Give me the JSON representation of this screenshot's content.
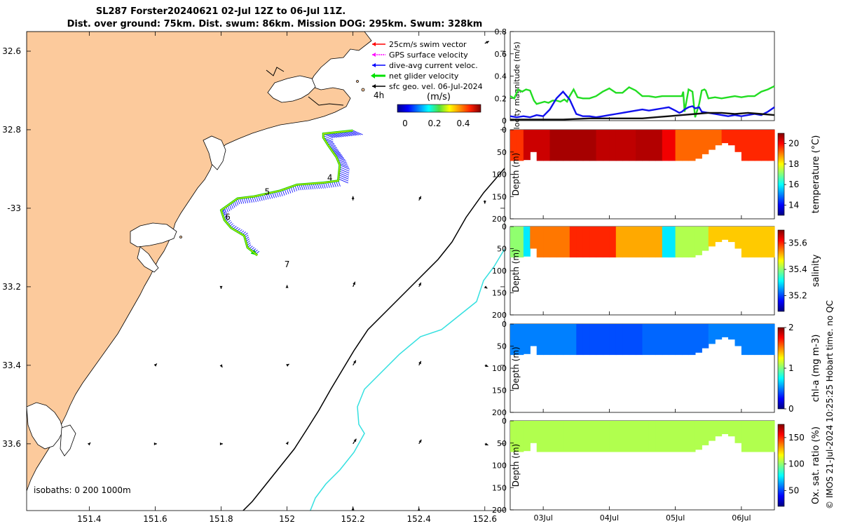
{
  "title": {
    "line1": "SL287 Forster20240621 02-Jul 12Z to 06-Jul 11Z.",
    "line2": "Dist. over ground: 75km. Dist. swum: 86km. Mission DOG: 295km. Swum: 328km"
  },
  "map": {
    "lon_ticks": [
      151.4,
      151.6,
      151.8,
      152,
      152.2,
      152.4,
      152.6
    ],
    "lon_tick_labels": [
      "151.4",
      "151.6",
      "151.8",
      "152",
      "152.2",
      "152.4",
      "152.6"
    ],
    "lat_ticks": [
      -32.6,
      -32.8,
      -33,
      -33.2,
      -33.4,
      -33.6
    ],
    "lat_tick_labels": [
      "32.6",
      "32.8",
      "-33",
      "33.2",
      "33.4",
      "33.6"
    ],
    "xlim": [
      151.21,
      152.66
    ],
    "ylim": [
      -33.77,
      -32.55
    ],
    "legend": [
      {
        "label": "25cm/s swim vector",
        "color": "#ff0000"
      },
      {
        "label": "GPS surface velocity",
        "color": "#ff00ff"
      },
      {
        "label": "dive-avg current veloc.",
        "color": "#0000ff"
      },
      {
        "label": "net glider velocity",
        "color": "#00e000"
      },
      {
        "label": "sfc geo. vel. 06-Jul-2024",
        "color": "#000000"
      }
    ],
    "colorbar_title": "(m/s)",
    "colorbar_ticks": [
      "0",
      "0.2",
      "0.4"
    ],
    "marker_4h": "4h",
    "day_labels": [
      {
        "text": "4",
        "lon": 152.13,
        "lat": -32.93
      },
      {
        "text": "5",
        "lon": 151.94,
        "lat": -32.965
      },
      {
        "text": "6",
        "lon": 151.82,
        "lat": -33.03
      },
      {
        "text": "7",
        "lon": 152.0,
        "lat": -33.15
      }
    ],
    "isobaths_label": "isobaths: 0   200  1000m",
    "glider_track": [
      [
        152.2,
        -32.802
      ],
      [
        152.11,
        -32.81
      ],
      [
        152.11,
        -32.82
      ],
      [
        152.125,
        -32.84
      ],
      [
        152.15,
        -32.87
      ],
      [
        152.16,
        -32.89
      ],
      [
        152.155,
        -32.93
      ],
      [
        152.11,
        -32.935
      ],
      [
        152.03,
        -32.94
      ],
      [
        151.98,
        -32.955
      ],
      [
        151.9,
        -32.97
      ],
      [
        151.85,
        -32.975
      ],
      [
        151.8,
        -33.005
      ],
      [
        151.81,
        -33.03
      ],
      [
        151.83,
        -33.05
      ],
      [
        151.87,
        -33.07
      ],
      [
        151.88,
        -33.1
      ],
      [
        151.91,
        -33.12
      ]
    ],
    "geo_vectors": [
      {
        "lon": 152.6,
        "lat": -32.58,
        "u": 0.01,
        "v": 0.005
      },
      {
        "lon": 152.2,
        "lat": -32.98,
        "u": 0.0,
        "v": 0.01
      },
      {
        "lon": 152.4,
        "lat": -32.98,
        "u": 0.005,
        "v": 0.01
      },
      {
        "lon": 152.6,
        "lat": -32.98,
        "u": 0.0,
        "v": -0.008
      },
      {
        "lon": 151.8,
        "lat": -33.2,
        "u": 0.0,
        "v": -0.005
      },
      {
        "lon": 152.0,
        "lat": -33.2,
        "u": 0.0,
        "v": 0.004
      },
      {
        "lon": 152.2,
        "lat": -33.2,
        "u": 0.005,
        "v": 0.012
      },
      {
        "lon": 152.4,
        "lat": -33.2,
        "u": 0.005,
        "v": 0.01
      },
      {
        "lon": 152.6,
        "lat": -33.2,
        "u": 0.006,
        "v": -0.004
      },
      {
        "lon": 151.6,
        "lat": -33.4,
        "u": 0.004,
        "v": 0.004
      },
      {
        "lon": 151.8,
        "lat": -33.4,
        "u": 0.003,
        "v": -0.005
      },
      {
        "lon": 152.0,
        "lat": -33.4,
        "u": 0.005,
        "v": 0.003
      },
      {
        "lon": 152.2,
        "lat": -33.4,
        "u": 0.007,
        "v": 0.012
      },
      {
        "lon": 152.4,
        "lat": -33.4,
        "u": 0.005,
        "v": 0.01
      },
      {
        "lon": 152.6,
        "lat": -33.4,
        "u": 0.008,
        "v": -0.003
      },
      {
        "lon": 151.4,
        "lat": -33.6,
        "u": 0.003,
        "v": 0.003
      },
      {
        "lon": 151.6,
        "lat": -33.6,
        "u": 0.004,
        "v": 0.0
      },
      {
        "lon": 151.8,
        "lat": -33.6,
        "u": 0.004,
        "v": 0.0
      },
      {
        "lon": 152.0,
        "lat": -33.6,
        "u": 0.003,
        "v": 0.005
      },
      {
        "lon": 152.2,
        "lat": -33.6,
        "u": 0.008,
        "v": 0.012
      },
      {
        "lon": 152.4,
        "lat": -33.6,
        "u": 0.006,
        "v": 0.01
      },
      {
        "lon": 152.6,
        "lat": -33.6,
        "u": 0.008,
        "v": -0.003
      },
      {
        "lon": 152.2,
        "lat": -33.77,
        "u": 0.0,
        "v": 0.008
      },
      {
        "lon": 152.4,
        "lat": -33.77,
        "u": 0.0,
        "v": 0.006
      }
    ]
  },
  "chart_data": [
    {
      "type": "line",
      "title": "",
      "ylabel": "velocity magnitude (m/s)",
      "ylim": [
        0,
        0.8
      ],
      "yticks": [
        0,
        0.2,
        0.4,
        0.6,
        0.8
      ],
      "ytick_labels": [
        "0",
        "0.2",
        "0.4",
        "0.6",
        "0.8"
      ],
      "xlim": [
        0,
        4
      ],
      "series": [
        {
          "name": "net glider velocity",
          "color": "#22dd22",
          "x": [
            0,
            0.06,
            0.12,
            0.18,
            0.24,
            0.3,
            0.36,
            0.4,
            0.46,
            0.52,
            0.58,
            0.64,
            0.7,
            0.76,
            0.82,
            0.86,
            0.9,
            0.96,
            1.02,
            1.1,
            1.2,
            1.3,
            1.4,
            1.5,
            1.6,
            1.7,
            1.8,
            1.9,
            2.0,
            2.1,
            2.2,
            2.3,
            2.4,
            2.5,
            2.56,
            2.6,
            2.62,
            2.64,
            2.7,
            2.76,
            2.8,
            2.86,
            2.9,
            2.94,
            2.96,
            3.0,
            3.1,
            3.2,
            3.3,
            3.4,
            3.5,
            3.6,
            3.7,
            3.8,
            3.9,
            4.0
          ],
          "y": [
            0.22,
            0.2,
            0.28,
            0.26,
            0.28,
            0.27,
            0.18,
            0.15,
            0.16,
            0.17,
            0.16,
            0.18,
            0.18,
            0.17,
            0.19,
            0.17,
            0.22,
            0.28,
            0.21,
            0.2,
            0.2,
            0.22,
            0.26,
            0.29,
            0.25,
            0.25,
            0.3,
            0.27,
            0.22,
            0.22,
            0.21,
            0.22,
            0.22,
            0.22,
            0.22,
            0.22,
            0.26,
            0.08,
            0.28,
            0.26,
            0.03,
            0.15,
            0.27,
            0.28,
            0.27,
            0.2,
            0.21,
            0.2,
            0.21,
            0.22,
            0.21,
            0.22,
            0.22,
            0.26,
            0.28,
            0.31
          ]
        },
        {
          "name": "dive-avg current veloc.",
          "color": "#1010ee",
          "x": [
            0,
            0.1,
            0.2,
            0.3,
            0.4,
            0.5,
            0.6,
            0.7,
            0.8,
            0.9,
            1.0,
            1.1,
            1.2,
            1.3,
            1.4,
            1.5,
            1.6,
            1.7,
            1.8,
            1.9,
            2.0,
            2.1,
            2.2,
            2.3,
            2.4,
            2.5,
            2.56,
            2.6,
            2.64,
            2.7,
            2.76,
            2.8,
            2.86,
            2.9,
            3.0,
            3.1,
            3.2,
            3.3,
            3.4,
            3.5,
            3.6,
            3.7,
            3.8,
            3.9,
            4.0
          ],
          "y": [
            0.04,
            0.03,
            0.04,
            0.03,
            0.05,
            0.04,
            0.1,
            0.2,
            0.26,
            0.19,
            0.06,
            0.04,
            0.04,
            0.03,
            0.04,
            0.05,
            0.06,
            0.07,
            0.08,
            0.09,
            0.1,
            0.09,
            0.1,
            0.11,
            0.12,
            0.09,
            0.07,
            0.08,
            0.1,
            0.12,
            0.13,
            0.11,
            0.12,
            0.08,
            0.07,
            0.06,
            0.05,
            0.04,
            0.05,
            0.04,
            0.05,
            0.06,
            0.05,
            0.08,
            0.12
          ]
        },
        {
          "name": "sfc geo. vel.",
          "color": "#111111",
          "x": [
            0,
            0.4,
            0.8,
            1.2,
            1.6,
            2.0,
            2.2,
            2.4,
            2.6,
            2.8,
            3.0,
            3.2,
            3.4,
            3.6,
            3.8,
            4.0
          ],
          "y": [
            0.01,
            0.01,
            0.01,
            0.02,
            0.02,
            0.02,
            0.03,
            0.04,
            0.05,
            0.06,
            0.07,
            0.07,
            0.06,
            0.07,
            0.06,
            0.05
          ]
        }
      ]
    },
    {
      "type": "heatmap",
      "ylabel": "Depth (m)",
      "colorbar_label": "temperature (°C)",
      "ylim": [
        0,
        200
      ],
      "yticks": [
        0,
        50,
        100,
        150,
        200
      ],
      "clim": [
        13,
        21
      ],
      "cticks": [
        14,
        16,
        18,
        20
      ],
      "base": 20.0,
      "bands": [
        {
          "x0": 0.0,
          "x1": 0.25,
          "value": 19.6
        },
        {
          "x0": 0.25,
          "x1": 0.6,
          "value": 20.4
        },
        {
          "x0": 0.6,
          "x1": 1.3,
          "value": 20.7
        },
        {
          "x0": 1.3,
          "x1": 1.9,
          "value": 20.5
        },
        {
          "x0": 1.9,
          "x1": 2.3,
          "value": 20.6
        },
        {
          "x0": 2.3,
          "x1": 2.55,
          "value": 20.1
        },
        {
          "x0": 2.55,
          "x1": 3.2,
          "value": 19.2
        },
        {
          "x0": 3.2,
          "x1": 4.0,
          "value": 19.7
        }
      ]
    },
    {
      "type": "heatmap",
      "ylabel": "Depth (m)",
      "colorbar_label": "salinity",
      "ylim": [
        0,
        200
      ],
      "yticks": [
        0,
        50,
        100,
        150,
        200
      ],
      "clim": [
        35.08,
        35.7
      ],
      "cticks": [
        35.2,
        35.4,
        35.6
      ],
      "base": 35.5,
      "bands": [
        {
          "x0": 0.0,
          "x1": 0.18,
          "value": 35.4
        },
        {
          "x0": 0.18,
          "x1": 0.3,
          "value": 35.3
        },
        {
          "x0": 0.3,
          "x1": 0.9,
          "value": 35.55
        },
        {
          "x0": 0.9,
          "x1": 1.6,
          "value": 35.6
        },
        {
          "x0": 1.6,
          "x1": 2.3,
          "value": 35.52
        },
        {
          "x0": 2.3,
          "x1": 2.55,
          "value": 35.3
        },
        {
          "x0": 2.55,
          "x1": 3.0,
          "value": 35.42
        },
        {
          "x0": 3.0,
          "x1": 4.0,
          "value": 35.5
        }
      ]
    },
    {
      "type": "heatmap",
      "ylabel": "Depth (m)",
      "colorbar_label": "chl-a (mg m-3)",
      "ylim": [
        0,
        200
      ],
      "yticks": [
        0,
        50,
        100,
        150,
        200
      ],
      "clim": [
        0,
        2
      ],
      "cticks": [
        0,
        1,
        2
      ],
      "base": 0.45,
      "bands": [
        {
          "x0": 0.0,
          "x1": 1.0,
          "value": 0.5
        },
        {
          "x0": 1.0,
          "x1": 2.0,
          "value": 0.4
        },
        {
          "x0": 2.0,
          "x1": 3.0,
          "value": 0.45
        },
        {
          "x0": 3.0,
          "x1": 4.0,
          "value": 0.5
        }
      ]
    },
    {
      "type": "heatmap",
      "ylabel": "Depth (m)",
      "colorbar_label": "Ox. sat. ratio (%)",
      "ylim": [
        0,
        200
      ],
      "yticks": [
        0,
        50,
        100,
        150,
        200
      ],
      "clim": [
        20,
        175
      ],
      "cticks": [
        50,
        100,
        150
      ],
      "base": 105,
      "bands": [
        {
          "x0": 0.0,
          "x1": 4.0,
          "value": 105
        }
      ]
    }
  ],
  "time_axis": {
    "xlim": [
      0,
      4
    ],
    "ticks": [
      0.5,
      1.5,
      2.5,
      3.5
    ],
    "labels": [
      "03Jul",
      "04Jul",
      "05Jul",
      "06Jul"
    ]
  },
  "profile_bottom_depth": [
    70,
    70,
    68,
    50,
    70,
    70,
    70,
    70,
    70,
    70,
    70,
    70,
    70,
    70,
    70,
    70,
    70,
    70,
    70,
    70,
    70,
    70,
    70,
    70,
    70,
    70,
    70,
    70,
    65,
    55,
    45,
    35,
    30,
    35,
    50,
    70,
    70,
    70,
    70,
    70,
    70
  ],
  "footer": "© IMOS 21-Jul-2024 10:25:25 Hobart time. no QC"
}
